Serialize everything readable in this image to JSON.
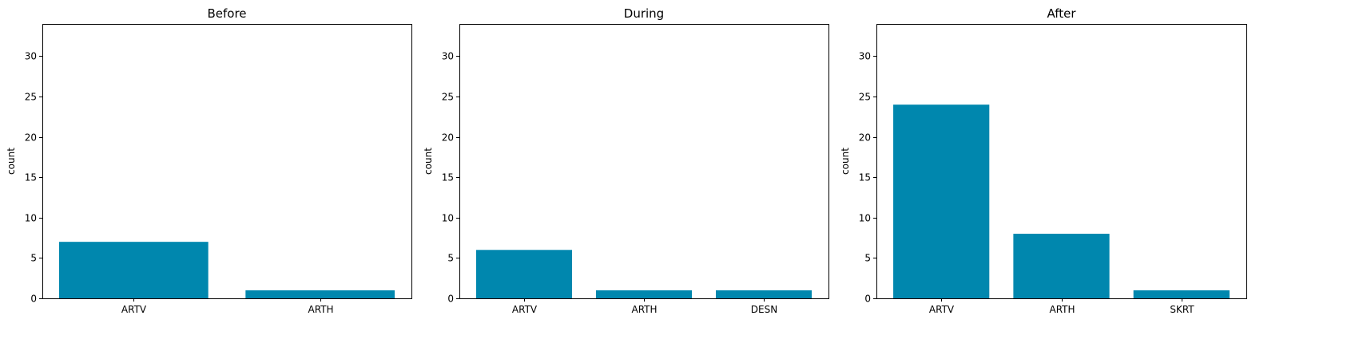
{
  "chart_data": [
    {
      "type": "bar",
      "title": "Before",
      "xlabel": "",
      "ylabel": "count",
      "categories": [
        "ARTV",
        "ARTH"
      ],
      "values": [
        7,
        1
      ],
      "ylim": [
        0,
        34
      ],
      "yticks": [
        0,
        5,
        10,
        15,
        20,
        25,
        30
      ],
      "grid": false,
      "bar_color": "#0087ae"
    },
    {
      "type": "bar",
      "title": "During",
      "xlabel": "",
      "ylabel": "count",
      "categories": [
        "ARTV",
        "ARTH",
        "DESN"
      ],
      "values": [
        6,
        1,
        1
      ],
      "ylim": [
        0,
        34
      ],
      "yticks": [
        0,
        5,
        10,
        15,
        20,
        25,
        30
      ],
      "grid": false,
      "bar_color": "#0087ae"
    },
    {
      "type": "bar",
      "title": "After",
      "xlabel": "",
      "ylabel": "count",
      "categories": [
        "ARTV",
        "ARTH",
        "SKRT"
      ],
      "values": [
        24,
        8,
        1
      ],
      "ylim": [
        0,
        34
      ],
      "yticks": [
        0,
        5,
        10,
        15,
        20,
        25,
        30
      ],
      "grid": false,
      "bar_color": "#0087ae"
    }
  ]
}
